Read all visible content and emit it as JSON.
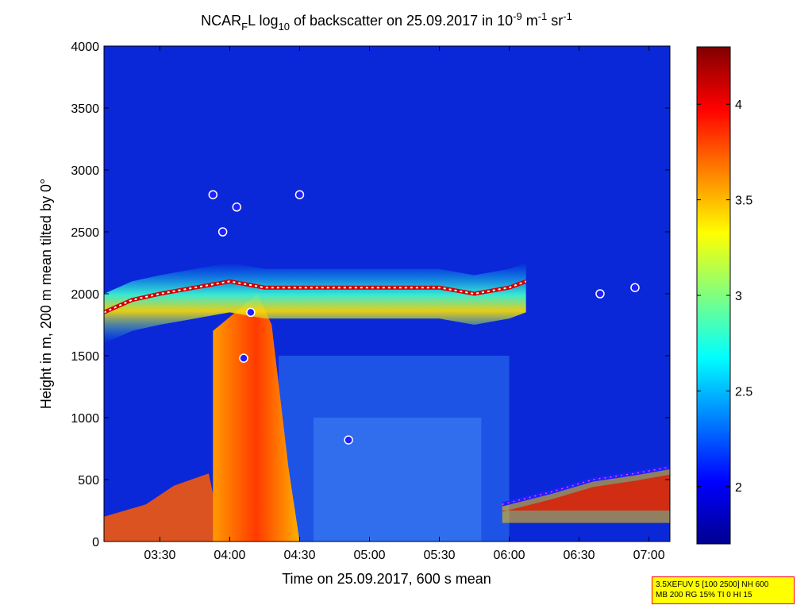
{
  "chart_data": {
    "type": "heatmap",
    "title_parts": {
      "a": "NCAR",
      "sub1": "F",
      "b": "L log",
      "sub2": "10",
      "c": " of backscatter on 25.09.2017 in 10",
      "sup1": "-9",
      "d": " m",
      "sup2": "-1",
      "e": " sr",
      "sup3": "-1"
    },
    "xlabel": "Time on 25.09.2017, 600 s mean",
    "ylabel": "Height in m, 200 m mean tilted by 0°",
    "x_ticks": [
      "03:30",
      "04:00",
      "04:30",
      "05:00",
      "05:30",
      "06:00",
      "06:30",
      "07:00"
    ],
    "x_tick_hours": [
      3.5,
      4.0,
      4.5,
      5.0,
      5.5,
      6.0,
      6.5,
      7.0
    ],
    "xlim_hours": [
      3.1,
      7.15
    ],
    "y_ticks": [
      "0",
      "500",
      "1000",
      "1500",
      "2000",
      "2500",
      "3000",
      "3500",
      "4000"
    ],
    "y_tick_values": [
      0,
      500,
      1000,
      1500,
      2000,
      2500,
      3000,
      3500,
      4000
    ],
    "ylim": [
      0,
      4000
    ],
    "colorbar": {
      "ticks": [
        "2",
        "2.5",
        "3",
        "3.5",
        "4"
      ],
      "tick_values": [
        2,
        2.5,
        3,
        3.5,
        4
      ],
      "range": [
        1.7,
        4.3
      ],
      "colormap": "jet"
    },
    "features": {
      "cloud_layer": [
        [
          3.1,
          1850
        ],
        [
          3.3,
          1950
        ],
        [
          3.5,
          2000
        ],
        [
          3.75,
          2050
        ],
        [
          4.0,
          2100
        ],
        [
          4.25,
          2050
        ],
        [
          4.5,
          2050
        ],
        [
          4.75,
          2050
        ],
        [
          5.0,
          2050
        ],
        [
          5.25,
          2050
        ],
        [
          5.5,
          2050
        ],
        [
          5.75,
          2000
        ],
        [
          6.0,
          2050
        ],
        [
          6.12,
          2100
        ]
      ],
      "dense_plume": [
        [
          3.9,
          0
        ],
        [
          4.3,
          1400
        ],
        [
          4.4,
          700
        ]
      ],
      "boundary_layer_top": [
        [
          3.1,
          200
        ],
        [
          3.4,
          300
        ],
        [
          3.6,
          450
        ],
        [
          3.85,
          550
        ],
        [
          5.95,
          300
        ],
        [
          6.3,
          400
        ],
        [
          6.6,
          500
        ],
        [
          6.9,
          550
        ],
        [
          7.15,
          600
        ]
      ],
      "scattered_markers": [
        [
          3.88,
          2800
        ],
        [
          3.95,
          2500
        ],
        [
          4.05,
          2700
        ],
        [
          4.15,
          1850
        ],
        [
          4.1,
          1480
        ],
        [
          4.5,
          2800
        ],
        [
          4.85,
          820
        ],
        [
          6.65,
          2000
        ],
        [
          6.9,
          2050
        ]
      ]
    },
    "legend": "none",
    "grid": false
  },
  "info_box": {
    "line1": "3.5XEFUV 5 [100 2500] NH 600",
    "line2": "MB 200 RG 15% TI 0 HI 15"
  }
}
